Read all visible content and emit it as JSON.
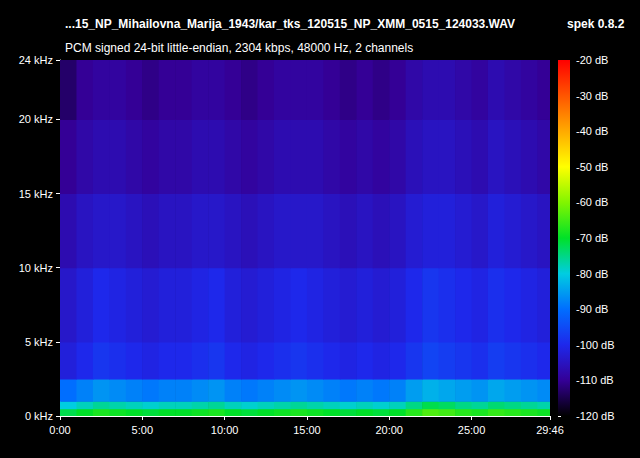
{
  "chart_data": {
    "type": "heatmap",
    "title": "...15_NP_Mihailovna_Marija_1943/kar_tks_120515_NP_XMM_0515_124033.WAV",
    "subtitle": "PCM signed 24-bit little-endian, 2304 kbps, 48000 Hz, 2 channels",
    "annotation": "spek 0.8.2",
    "grid": false,
    "xlim": [
      0,
      1786
    ],
    "xticks": [
      {
        "value": 0,
        "label": "0:00"
      },
      {
        "value": 300,
        "label": "5:00"
      },
      {
        "value": 600,
        "label": "10:00"
      },
      {
        "value": 900,
        "label": "15:00"
      },
      {
        "value": 1200,
        "label": "20:00"
      },
      {
        "value": 1500,
        "label": "25:00"
      },
      {
        "value": 1786,
        "label": "29:46"
      }
    ],
    "ylim": [
      0,
      24
    ],
    "yticks": [
      {
        "value": 0,
        "label": "0 kHz"
      },
      {
        "value": 5,
        "label": "5 kHz"
      },
      {
        "value": 10,
        "label": "10 kHz"
      },
      {
        "value": 15,
        "label": "15 kHz"
      },
      {
        "value": 20,
        "label": "20 kHz"
      },
      {
        "value": 24,
        "label": "24 kHz"
      }
    ],
    "x_bins": [
      0,
      60,
      120,
      180,
      240,
      300,
      360,
      420,
      480,
      540,
      600,
      660,
      720,
      780,
      840,
      900,
      960,
      1020,
      1080,
      1140,
      1200,
      1260,
      1320,
      1380,
      1440,
      1500,
      1560,
      1620,
      1680,
      1740,
      1786
    ],
    "y_bins": [
      0,
      0.5,
      1,
      2.5,
      5,
      10,
      15,
      20,
      24
    ],
    "cells": [
      [
        -72,
        -70,
        -68,
        -69,
        -70,
        -71,
        -70,
        -70,
        -69,
        -68,
        -70,
        -71,
        -70,
        -69,
        -68,
        -69,
        -70,
        -71,
        -70,
        -71,
        -70,
        -67,
        -64,
        -65,
        -67,
        -68,
        -66,
        -67,
        -68,
        -69
      ],
      [
        -80,
        -78,
        -76,
        -77,
        -78,
        -79,
        -78,
        -78,
        -77,
        -76,
        -78,
        -79,
        -78,
        -77,
        -76,
        -77,
        -78,
        -79,
        -78,
        -79,
        -78,
        -75,
        -72,
        -73,
        -75,
        -76,
        -74,
        -75,
        -76,
        -77
      ],
      [
        -90,
        -88,
        -86,
        -87,
        -88,
        -89,
        -88,
        -88,
        -87,
        -86,
        -88,
        -89,
        -88,
        -87,
        -86,
        -87,
        -88,
        -89,
        -88,
        -89,
        -88,
        -85,
        -83,
        -84,
        -85,
        -86,
        -84,
        -85,
        -86,
        -87
      ],
      [
        -102,
        -100,
        -98,
        -99,
        -100,
        -101,
        -100,
        -100,
        -99,
        -98,
        -100,
        -101,
        -100,
        -99,
        -98,
        -99,
        -100,
        -101,
        -100,
        -101,
        -100,
        -98,
        -96,
        -97,
        -98,
        -99,
        -97,
        -98,
        -99,
        -100
      ],
      [
        -104,
        -102,
        -100,
        -101,
        -102,
        -103,
        -102,
        -102,
        -101,
        -100,
        -102,
        -103,
        -102,
        -101,
        -100,
        -101,
        -102,
        -103,
        -102,
        -103,
        -102,
        -100,
        -98,
        -99,
        -100,
        -101,
        -99,
        -100,
        -101,
        -102
      ],
      [
        -107,
        -105,
        -104,
        -104,
        -105,
        -106,
        -105,
        -105,
        -104,
        -104,
        -105,
        -106,
        -105,
        -104,
        -104,
        -104,
        -105,
        -106,
        -105,
        -106,
        -105,
        -103,
        -102,
        -102,
        -103,
        -104,
        -102,
        -103,
        -104,
        -105
      ],
      [
        -110,
        -108,
        -107,
        -107,
        -108,
        -109,
        -108,
        -108,
        -107,
        -107,
        -108,
        -109,
        -108,
        -107,
        -107,
        -107,
        -108,
        -109,
        -108,
        -109,
        -108,
        -106,
        -105,
        -105,
        -106,
        -107,
        -105,
        -106,
        -107,
        -108
      ],
      [
        -113,
        -110,
        -109,
        -109,
        -110,
        -111,
        -110,
        -110,
        -109,
        -109,
        -110,
        -111,
        -110,
        -109,
        -109,
        -109,
        -110,
        -111,
        -110,
        -111,
        -110,
        -108,
        -107,
        -107,
        -108,
        -109,
        -107,
        -108,
        -109,
        -110
      ]
    ],
    "color_bar": {
      "range": [
        -120,
        -20
      ],
      "ticks": [
        {
          "value": -20,
          "label": "-20 dB"
        },
        {
          "value": -30,
          "label": "-30 dB"
        },
        {
          "value": -40,
          "label": "-40 dB"
        },
        {
          "value": -50,
          "label": "-50 dB"
        },
        {
          "value": -60,
          "label": "-60 dB"
        },
        {
          "value": -70,
          "label": "-70 dB"
        },
        {
          "value": -80,
          "label": "-80 dB"
        },
        {
          "value": -90,
          "label": "-90 dB"
        },
        {
          "value": -100,
          "label": "-100 dB"
        },
        {
          "value": -110,
          "label": "-110 dB"
        },
        {
          "value": -120,
          "label": "-120 dB"
        }
      ]
    }
  }
}
